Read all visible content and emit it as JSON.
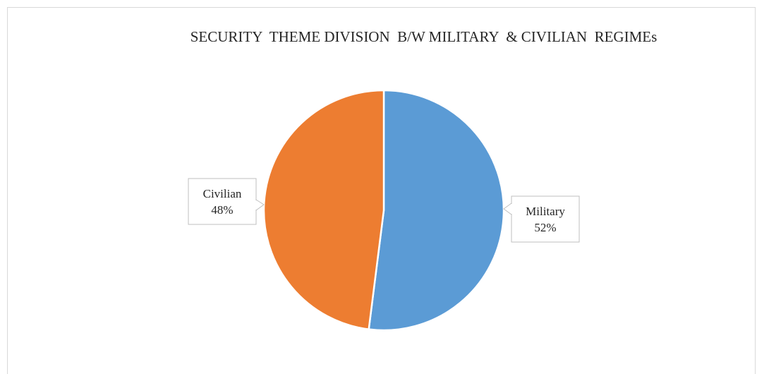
{
  "chart_data": {
    "type": "pie",
    "title": "SECURITY  THEME DIVISION  B/W MILITARY  & CIVILIAN  REGIMEs",
    "series": [
      {
        "name": "",
        "slices": [
          {
            "label": "Military",
            "value": 52,
            "value_label": "52%",
            "color": "#5b9bd5"
          },
          {
            "label": "Civilian",
            "value": 48,
            "value_label": "48%",
            "color": "#ed7d31"
          }
        ]
      }
    ],
    "start_angle": "12 o'clock",
    "direction": "clockwise",
    "legend": "none",
    "data_labels": "callouts"
  }
}
